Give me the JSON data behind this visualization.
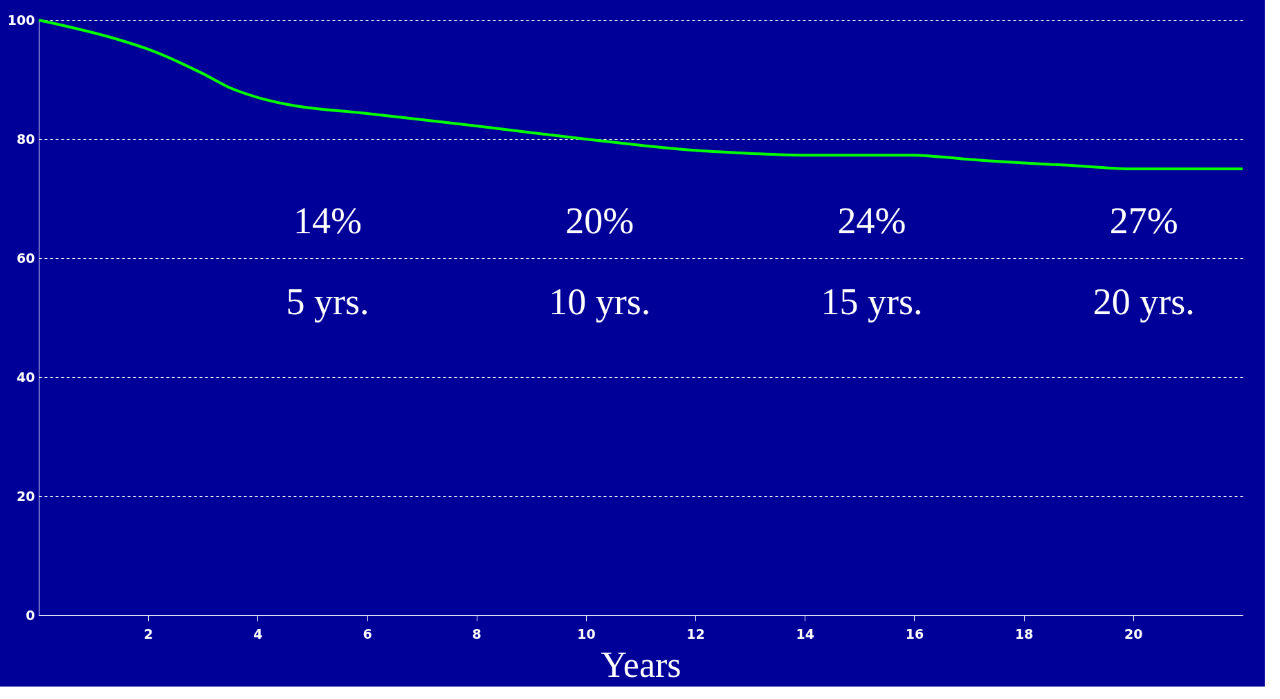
{
  "chart_data": {
    "type": "line",
    "xlabel": "Years",
    "x": [
      0,
      1.5,
      2,
      3,
      3.5,
      4,
      4.5,
      6,
      8,
      10,
      12,
      13,
      14,
      16,
      16.5,
      17,
      19,
      20,
      22
    ],
    "series": [
      {
        "color": "#00ff00",
        "values": [
          100,
          96.6,
          95.1,
          91,
          88.6,
          87,
          85.9,
          84.3,
          82.2,
          80,
          78.1,
          77.6,
          77.3,
          77.3,
          77,
          76.6,
          75.5,
          75,
          75
        ]
      }
    ],
    "xlim": [
      0,
      22
    ],
    "xticks": [
      2,
      4,
      6,
      8,
      10,
      12,
      14,
      16,
      18,
      20
    ],
    "ylim": [
      0,
      100
    ],
    "yticks": [
      0,
      20,
      40,
      60,
      80,
      100
    ],
    "grid": "y",
    "marker": "none",
    "line_style": "solid",
    "annotations": [
      "14%",
      "5 yrs.",
      "20%",
      "10 yrs.",
      "24%",
      "15 yrs.",
      "27%",
      "20 yrs."
    ]
  }
}
